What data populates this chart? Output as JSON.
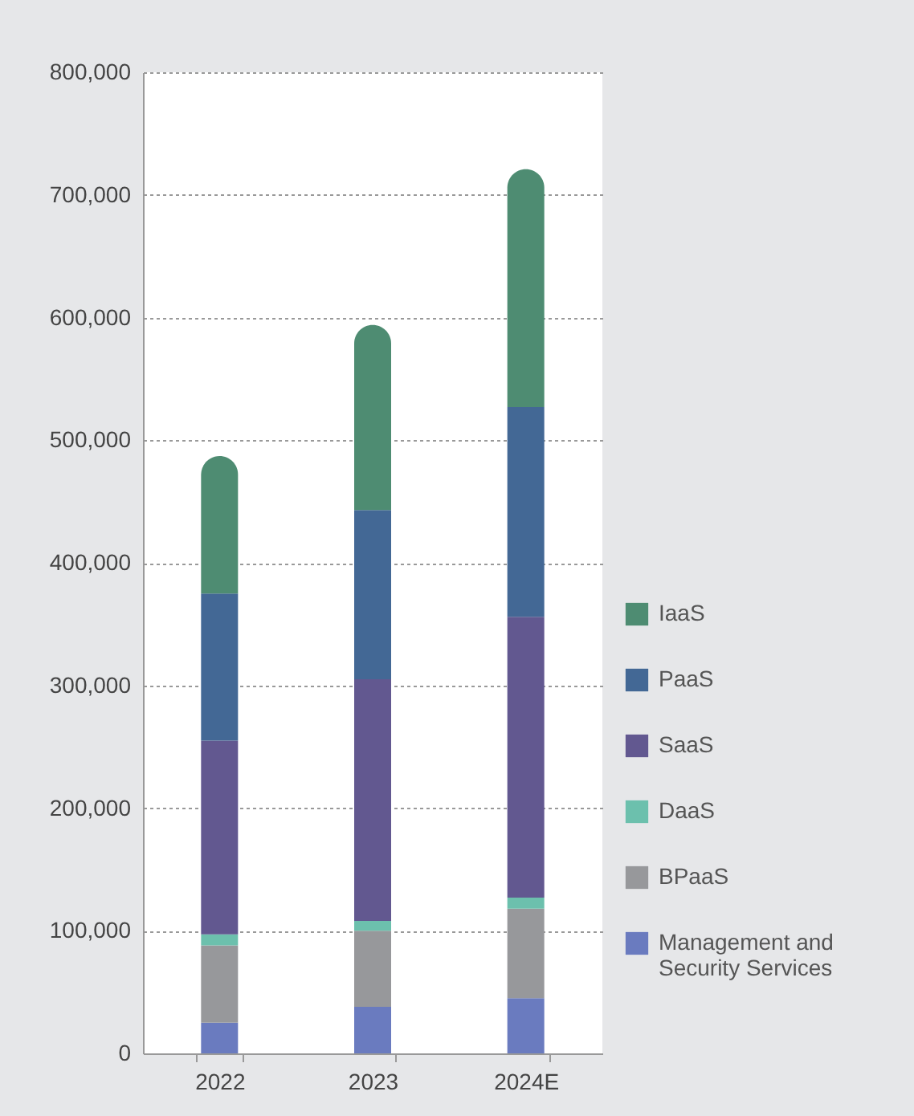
{
  "chart_data": {
    "type": "bar",
    "stacked": true,
    "categories": [
      "2022",
      "2023",
      "2024E"
    ],
    "series": [
      {
        "name": "Management and Security Services",
        "color": "#6a7bbf",
        "values": [
          25000,
          38000,
          45000
        ]
      },
      {
        "name": "BPaaS",
        "color": "#97989b",
        "values": [
          63000,
          62000,
          73000
        ]
      },
      {
        "name": "DaaS",
        "color": "#6cc0ad",
        "values": [
          9000,
          8000,
          9000
        ]
      },
      {
        "name": "SaaS",
        "color": "#625890",
        "values": [
          158000,
          197000,
          229000
        ]
      },
      {
        "name": "PaaS",
        "color": "#436895",
        "values": [
          120000,
          138000,
          171000
        ]
      },
      {
        "name": "IaaS",
        "color": "#4e8c72",
        "values": [
          112000,
          151000,
          194000
        ]
      }
    ],
    "ylim": [
      0,
      800000
    ],
    "yticks": [
      0,
      {
        "value": 100000,
        "label": "100,000"
      },
      {
        "value": 200000,
        "label": "200,000"
      },
      {
        "value": 300000,
        "label": "300,000"
      },
      {
        "value": 400000,
        "label": "400,000"
      },
      {
        "value": 500000,
        "label": "500,000"
      },
      {
        "value": 600000,
        "label": "600,000"
      },
      {
        "value": 700000,
        "label": "700,000"
      },
      {
        "value": 800000,
        "label": "800,000"
      }
    ],
    "grid": "y",
    "legend": "right"
  }
}
